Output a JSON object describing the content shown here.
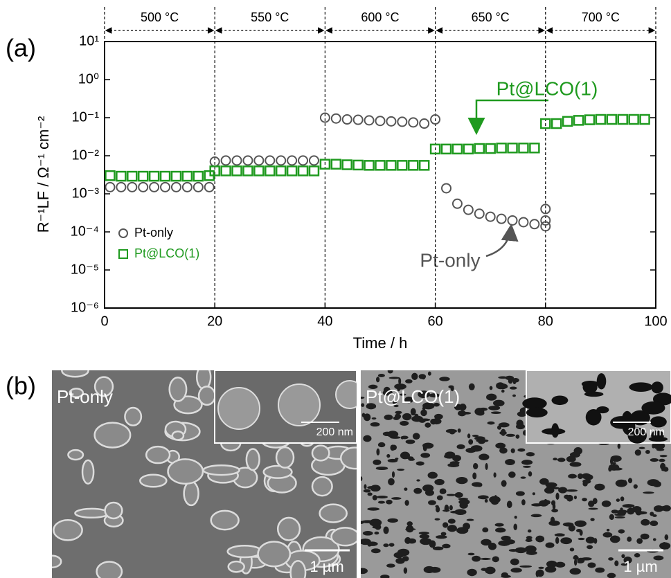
{
  "chart_data": {
    "type": "scatter",
    "panel_label": "(a)",
    "xlabel": "Time / h",
    "ylabel": "R⁻¹LF / Ω⁻¹ cm⁻²",
    "xlim": [
      0,
      100
    ],
    "xticks": [
      0,
      20,
      40,
      60,
      80,
      100
    ],
    "ylim": [
      1e-06,
      10
    ],
    "log_y": true,
    "yticks": [
      {
        "value": 10,
        "label": "10¹"
      },
      {
        "value": 1,
        "label": "10⁰"
      },
      {
        "value": 0.1,
        "label": "10⁻¹"
      },
      {
        "value": 0.01,
        "label": "10⁻²"
      },
      {
        "value": 0.001,
        "label": "10⁻³"
      },
      {
        "value": 0.0001,
        "label": "10⁻⁴"
      },
      {
        "value": 1e-05,
        "label": "10⁻⁵"
      },
      {
        "value": 1e-06,
        "label": "10⁻⁶"
      }
    ],
    "temperature_labels": [
      "500 °C",
      "550 °C",
      "600 °C",
      "650 °C",
      "700 °C"
    ],
    "legend": "left",
    "series": [
      {
        "name": "Pt-only",
        "marker": "circle",
        "color": "#555555",
        "x": [
          1,
          3,
          5,
          7,
          9,
          11,
          13,
          15,
          17,
          19,
          20,
          22,
          24,
          26,
          28,
          30,
          32,
          34,
          36,
          38,
          40,
          42,
          44,
          46,
          48,
          50,
          52,
          54,
          56,
          58,
          60,
          62,
          64,
          66,
          68,
          70,
          72,
          74,
          76,
          78,
          80,
          80,
          80
        ],
        "values": [
          0.0015,
          0.0015,
          0.0015,
          0.0015,
          0.0015,
          0.0015,
          0.0015,
          0.0015,
          0.0015,
          0.0015,
          0.007,
          0.0075,
          0.0075,
          0.0075,
          0.0075,
          0.0075,
          0.0075,
          0.0075,
          0.0075,
          0.0075,
          0.1,
          0.095,
          0.09,
          0.088,
          0.085,
          0.082,
          0.08,
          0.078,
          0.075,
          0.07,
          0.09,
          0.0014,
          0.00055,
          0.00038,
          0.0003,
          0.00025,
          0.00022,
          0.0002,
          0.00018,
          0.00016,
          0.00014,
          0.0004,
          0.0002
        ]
      },
      {
        "name": "Pt@LCO(1)",
        "marker": "square",
        "color": "#1f9a1f",
        "x": [
          1,
          3,
          5,
          7,
          9,
          11,
          13,
          15,
          17,
          19,
          20,
          22,
          24,
          26,
          28,
          30,
          32,
          34,
          36,
          38,
          40,
          42,
          44,
          46,
          48,
          50,
          52,
          54,
          56,
          58,
          60,
          62,
          64,
          66,
          68,
          70,
          72,
          74,
          76,
          78,
          80,
          82,
          84,
          86,
          88,
          90,
          92,
          94,
          96,
          98
        ],
        "values": [
          0.003,
          0.0029,
          0.0029,
          0.0029,
          0.0029,
          0.0029,
          0.0029,
          0.0029,
          0.0029,
          0.003,
          0.004,
          0.004,
          0.004,
          0.004,
          0.004,
          0.004,
          0.004,
          0.004,
          0.004,
          0.004,
          0.006,
          0.006,
          0.0058,
          0.0057,
          0.0056,
          0.0056,
          0.0056,
          0.0056,
          0.0056,
          0.0056,
          0.015,
          0.015,
          0.015,
          0.015,
          0.0155,
          0.0155,
          0.016,
          0.016,
          0.016,
          0.016,
          0.07,
          0.07,
          0.08,
          0.085,
          0.088,
          0.09,
          0.09,
          0.09,
          0.09,
          0.09
        ]
      }
    ],
    "annotations": [
      {
        "text": "Pt@LCO(1)"
      },
      {
        "text": "Pt-only"
      }
    ]
  },
  "panel_b": {
    "panel_label": "(b)",
    "images": [
      {
        "label": "Pt-only",
        "inset_scale": "200 nm",
        "scale": "1 µm"
      },
      {
        "label": "Pt@LCO(1)",
        "inset_scale": "200 nm",
        "scale": "1 µm"
      }
    ]
  }
}
